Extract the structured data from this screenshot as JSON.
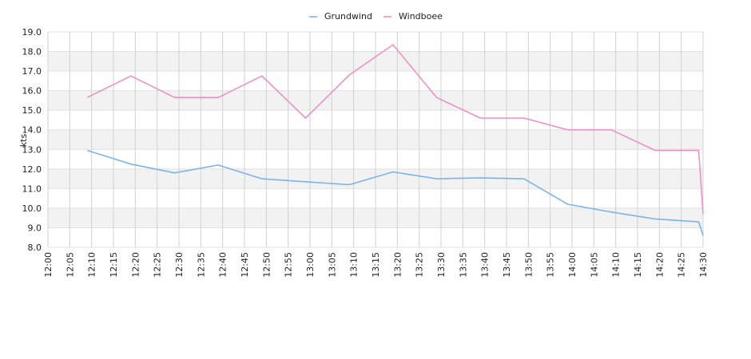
{
  "chart_data": {
    "type": "line",
    "title": "",
    "xlabel": "",
    "ylabel": "kts",
    "ylim": [
      8.0,
      19.0
    ],
    "y_ticks": [
      "8.0",
      "9.0",
      "10.0",
      "11.0",
      "12.0",
      "13.0",
      "14.0",
      "15.0",
      "16.0",
      "17.0",
      "18.0",
      "19.0"
    ],
    "x_ticks": [
      "12:00",
      "12:05",
      "12:10",
      "12:15",
      "12:20",
      "12:25",
      "12:30",
      "12:35",
      "12:40",
      "12:45",
      "12:50",
      "12:55",
      "13:00",
      "13:05",
      "13:10",
      "13:15",
      "13:20",
      "13:25",
      "13:30",
      "13:35",
      "13:40",
      "13:45",
      "13:50",
      "13:55",
      "14:00",
      "14:05",
      "14:10",
      "14:15",
      "14:20",
      "14:25",
      "14:30"
    ],
    "xlim": [
      "12:00",
      "14:30"
    ],
    "grid": true,
    "legend_position": "top-center",
    "series": [
      {
        "name": "Grundwind",
        "color": "#7ab4ea",
        "x": [
          "12:09",
          "12:19",
          "12:29",
          "12:39",
          "12:49",
          "12:59",
          "13:09",
          "13:19",
          "13:29",
          "13:39",
          "13:49",
          "13:59",
          "14:09",
          "14:19",
          "14:29",
          "14:30"
        ],
        "values": [
          12.95,
          12.25,
          11.8,
          12.2,
          11.5,
          11.35,
          11.2,
          11.85,
          11.5,
          11.55,
          11.5,
          10.2,
          9.8,
          9.45,
          9.3,
          8.6
        ]
      },
      {
        "name": "Windboee",
        "color": "#ee90c4",
        "x": [
          "12:09",
          "12:19",
          "12:29",
          "12:39",
          "12:49",
          "12:59",
          "13:09",
          "13:19",
          "13:29",
          "13:39",
          "13:49",
          "13:59",
          "14:09",
          "14:19",
          "14:29",
          "14:30"
        ],
        "values": [
          15.65,
          16.75,
          15.65,
          15.65,
          16.75,
          14.6,
          16.8,
          18.35,
          15.65,
          14.6,
          14.6,
          14.0,
          14.0,
          12.95,
          12.95,
          9.7
        ]
      }
    ]
  }
}
